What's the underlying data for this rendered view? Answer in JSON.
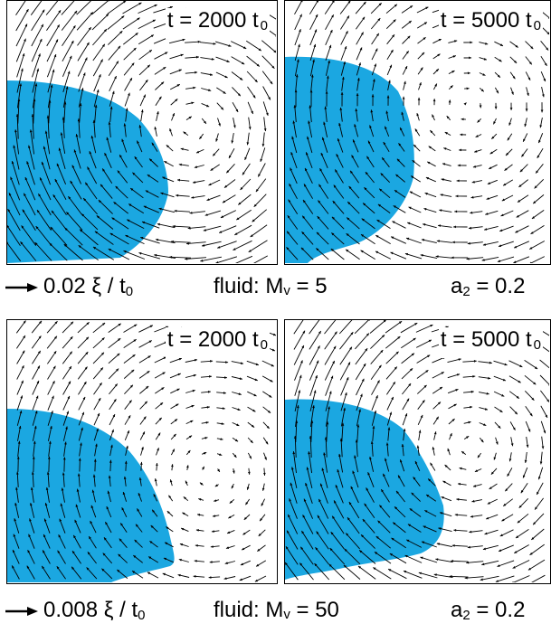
{
  "colors": {
    "drop": "#1ba7e1",
    "arrow": "#000000",
    "frame": "#000000"
  },
  "rows": [
    {
      "panels": [
        {
          "label": "t = 2000 t",
          "label_sub": "0"
        },
        {
          "label": "t = 5000 t",
          "label_sub": "0"
        }
      ],
      "caption": {
        "scale_text": "0.02 ξ / t",
        "scale_sub": "0",
        "fluid_text": "fluid: M",
        "fluid_sub": "v",
        "fluid_value": " = 5",
        "param_text": "a",
        "param_sub": "2",
        "param_value": " = 0.2"
      }
    },
    {
      "panels": [
        {
          "label": "t = 2000 t",
          "label_sub": "0"
        },
        {
          "label": "t = 5000 t",
          "label_sub": "0"
        }
      ],
      "caption": {
        "scale_text": "0.008 ξ / t",
        "scale_sub": "0",
        "fluid_text": "fluid: M",
        "fluid_sub": "v",
        "fluid_value": " = 50",
        "param_text": "a",
        "param_sub": "2",
        "param_value": " = 0.2"
      }
    }
  ]
}
